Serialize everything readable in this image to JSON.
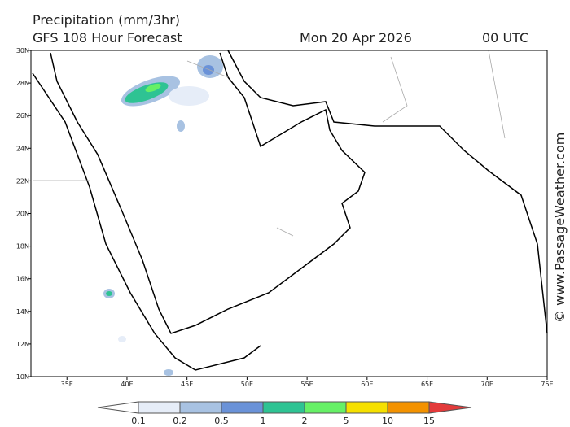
{
  "header": {
    "title": "Precipitation (mm/3hr)",
    "subtitle": "GFS 108 Hour Forecast",
    "date": "Mon 20 Apr 2026",
    "time": "00 UTC"
  },
  "map": {
    "xlim": [
      32,
      75
    ],
    "ylim": [
      10,
      30
    ],
    "xticks": [
      {
        "value": 35,
        "label": "35E"
      },
      {
        "value": 40,
        "label": "40E"
      },
      {
        "value": 45,
        "label": "45E"
      },
      {
        "value": 50,
        "label": "50E"
      },
      {
        "value": 55,
        "label": "55E"
      },
      {
        "value": 60,
        "label": "60E"
      },
      {
        "value": 65,
        "label": "65E"
      },
      {
        "value": 70,
        "label": "70E"
      },
      {
        "value": 75,
        "label": "75E"
      }
    ],
    "yticks": [
      {
        "value": 30,
        "label": "30N"
      },
      {
        "value": 28,
        "label": "28N"
      },
      {
        "value": 26,
        "label": "26N"
      },
      {
        "value": 24,
        "label": "24N"
      },
      {
        "value": 22,
        "label": "22N"
      },
      {
        "value": 20,
        "label": "20N"
      },
      {
        "value": 18,
        "label": "18N"
      },
      {
        "value": 16,
        "label": "16N"
      },
      {
        "value": 14,
        "label": "14N"
      },
      {
        "value": 12,
        "label": "12N"
      },
      {
        "value": 10,
        "label": "10N"
      }
    ]
  },
  "colorbar": {
    "levels": [
      0.1,
      0.2,
      0.5,
      1,
      2,
      5,
      10,
      15
    ],
    "colors": [
      "#ffffff",
      "#e6edf8",
      "#a8c2e2",
      "#6a92d8",
      "#2ec393",
      "#66f066",
      "#f5e000",
      "#f39200",
      "#e33a3a"
    ]
  },
  "credit": "© www.PassageWeather.com"
}
